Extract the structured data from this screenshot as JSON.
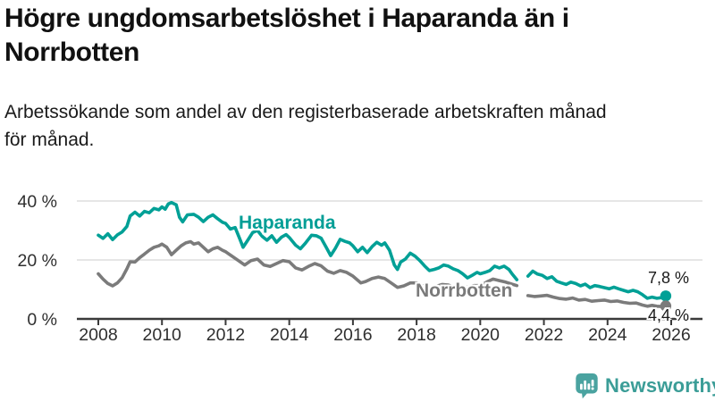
{
  "header": {
    "title_lines": [
      "Högre ungdomsarbetslöshet i Haparanda än i",
      "Norrbotten"
    ],
    "subtitle_lines": [
      "Arbetssökande som andel av den registerbaserade arbetskraften månad",
      "för månad."
    ]
  },
  "chart_data": {
    "type": "line",
    "unit": "%",
    "x_axis": {
      "ticks": [
        2008,
        2010,
        2012,
        2014,
        2016,
        2018,
        2020,
        2022,
        2024,
        2026
      ],
      "range": [
        2007.3,
        2027.0
      ]
    },
    "y_axis": {
      "ticks": [
        0,
        20,
        40
      ],
      "tick_labels": [
        "0 %",
        "20 %",
        "40 %"
      ],
      "range": [
        0,
        42
      ],
      "grid": true
    },
    "legend_position": "inline-labels",
    "series": [
      {
        "name": "Haparanda",
        "color": "#00a096",
        "end_label": "7,8 %",
        "end_value": 7.8,
        "segments": [
          [
            [
              2008.0,
              28.4
            ],
            [
              2008.15,
              27.3
            ],
            [
              2008.3,
              28.9
            ],
            [
              2008.45,
              26.9
            ],
            [
              2008.6,
              28.5
            ],
            [
              2008.75,
              29.5
            ],
            [
              2008.9,
              31.4
            ],
            [
              2009.0,
              34.9
            ],
            [
              2009.15,
              36.2
            ],
            [
              2009.3,
              34.9
            ],
            [
              2009.45,
              36.5
            ],
            [
              2009.6,
              36.0
            ],
            [
              2009.75,
              37.5
            ],
            [
              2009.9,
              37.0
            ],
            [
              2010.0,
              38.0
            ],
            [
              2010.1,
              37.2
            ],
            [
              2010.2,
              39.0
            ],
            [
              2010.3,
              39.5
            ],
            [
              2010.45,
              38.7
            ],
            [
              2010.55,
              34.5
            ],
            [
              2010.65,
              32.9
            ],
            [
              2010.8,
              35.3
            ],
            [
              2011.0,
              35.5
            ],
            [
              2011.15,
              34.5
            ],
            [
              2011.3,
              33.0
            ],
            [
              2011.45,
              34.5
            ],
            [
              2011.6,
              35.3
            ],
            [
              2011.75,
              34.0
            ],
            [
              2011.9,
              32.8
            ],
            [
              2012.0,
              32.4
            ],
            [
              2012.15,
              30.5
            ],
            [
              2012.3,
              31.0
            ],
            [
              2012.45,
              27.0
            ],
            [
              2012.55,
              24.3
            ],
            [
              2012.7,
              26.8
            ],
            [
              2012.85,
              29.3
            ],
            [
              2013.0,
              30.0
            ],
            [
              2013.15,
              28.0
            ],
            [
              2013.3,
              26.7
            ],
            [
              2013.45,
              28.2
            ],
            [
              2013.6,
              26.0
            ],
            [
              2013.75,
              27.7
            ],
            [
              2013.9,
              28.6
            ],
            [
              2014.0,
              27.6
            ],
            [
              2014.2,
              25.0
            ],
            [
              2014.35,
              23.8
            ],
            [
              2014.5,
              25.6
            ],
            [
              2014.7,
              28.4
            ],
            [
              2014.85,
              28.2
            ],
            [
              2015.0,
              27.4
            ],
            [
              2015.15,
              24.5
            ],
            [
              2015.3,
              21.5
            ],
            [
              2015.45,
              24.0
            ],
            [
              2015.6,
              27.0
            ],
            [
              2015.75,
              26.3
            ],
            [
              2015.9,
              25.8
            ],
            [
              2016.0,
              24.8
            ],
            [
              2016.15,
              22.8
            ],
            [
              2016.3,
              24.3
            ],
            [
              2016.45,
              22.5
            ],
            [
              2016.6,
              24.5
            ],
            [
              2016.75,
              26.0
            ],
            [
              2016.9,
              25.0
            ],
            [
              2017.0,
              25.8
            ],
            [
              2017.15,
              23.3
            ],
            [
              2017.3,
              18.3
            ],
            [
              2017.4,
              16.8
            ],
            [
              2017.5,
              19.3
            ],
            [
              2017.65,
              20.3
            ],
            [
              2017.8,
              22.3
            ],
            [
              2017.95,
              21.3
            ],
            [
              2018.1,
              19.8
            ],
            [
              2018.25,
              18.0
            ],
            [
              2018.4,
              16.4
            ],
            [
              2018.55,
              16.8
            ],
            [
              2018.7,
              17.3
            ],
            [
              2018.85,
              18.3
            ],
            [
              2019.0,
              17.9
            ],
            [
              2019.15,
              17.0
            ],
            [
              2019.3,
              16.4
            ],
            [
              2019.45,
              15.3
            ],
            [
              2019.6,
              13.9
            ],
            [
              2019.75,
              14.8
            ],
            [
              2019.9,
              15.8
            ],
            [
              2020.0,
              15.3
            ],
            [
              2020.15,
              15.8
            ],
            [
              2020.3,
              16.4
            ],
            [
              2020.45,
              17.9
            ],
            [
              2020.6,
              17.3
            ],
            [
              2020.75,
              17.9
            ],
            [
              2020.9,
              16.8
            ],
            [
              2021.0,
              15.3
            ],
            [
              2021.15,
              13.3
            ]
          ],
          [
            [
              2021.5,
              14.5
            ],
            [
              2021.65,
              16.2
            ],
            [
              2021.8,
              15.2
            ],
            [
              2021.95,
              14.8
            ],
            [
              2022.1,
              13.7
            ],
            [
              2022.25,
              14.3
            ],
            [
              2022.4,
              12.8
            ],
            [
              2022.55,
              12.2
            ],
            [
              2022.7,
              11.7
            ],
            [
              2022.85,
              12.5
            ],
            [
              2023.0,
              12.0
            ],
            [
              2023.15,
              11.2
            ],
            [
              2023.3,
              11.8
            ],
            [
              2023.45,
              10.6
            ],
            [
              2023.6,
              11.3
            ],
            [
              2023.75,
              11.0
            ],
            [
              2023.9,
              10.6
            ],
            [
              2024.05,
              10.2
            ],
            [
              2024.2,
              10.8
            ],
            [
              2024.35,
              10.2
            ],
            [
              2024.5,
              9.7
            ],
            [
              2024.65,
              9.2
            ],
            [
              2024.8,
              9.7
            ],
            [
              2024.95,
              9.2
            ],
            [
              2025.1,
              8.2
            ],
            [
              2025.25,
              7.0
            ],
            [
              2025.4,
              7.4
            ],
            [
              2025.55,
              7.0
            ],
            [
              2025.7,
              7.2
            ],
            [
              2025.83,
              7.8
            ]
          ]
        ]
      },
      {
        "name": "Norrbotten",
        "color": "#7b7b7b",
        "end_label": "4,4 %",
        "end_value": 4.4,
        "segments": [
          [
            [
              2008.0,
              15.3
            ],
            [
              2008.15,
              13.5
            ],
            [
              2008.3,
              12.0
            ],
            [
              2008.45,
              11.2
            ],
            [
              2008.6,
              12.2
            ],
            [
              2008.75,
              14.0
            ],
            [
              2008.9,
              17.0
            ],
            [
              2009.0,
              19.4
            ],
            [
              2009.15,
              19.3
            ],
            [
              2009.3,
              20.8
            ],
            [
              2009.45,
              22.0
            ],
            [
              2009.6,
              23.3
            ],
            [
              2009.75,
              24.3
            ],
            [
              2009.9,
              24.8
            ],
            [
              2010.0,
              25.4
            ],
            [
              2010.15,
              24.3
            ],
            [
              2010.3,
              21.8
            ],
            [
              2010.45,
              23.3
            ],
            [
              2010.6,
              24.8
            ],
            [
              2010.75,
              25.8
            ],
            [
              2010.9,
              26.2
            ],
            [
              2011.0,
              25.4
            ],
            [
              2011.15,
              25.8
            ],
            [
              2011.3,
              24.3
            ],
            [
              2011.45,
              22.8
            ],
            [
              2011.6,
              23.8
            ],
            [
              2011.75,
              24.3
            ],
            [
              2011.9,
              23.3
            ],
            [
              2012.0,
              22.8
            ],
            [
              2012.2,
              21.3
            ],
            [
              2012.4,
              19.8
            ],
            [
              2012.6,
              18.3
            ],
            [
              2012.8,
              19.8
            ],
            [
              2013.0,
              20.3
            ],
            [
              2013.2,
              18.3
            ],
            [
              2013.4,
              17.8
            ],
            [
              2013.6,
              18.8
            ],
            [
              2013.8,
              19.8
            ],
            [
              2014.0,
              19.4
            ],
            [
              2014.2,
              17.3
            ],
            [
              2014.4,
              16.6
            ],
            [
              2014.6,
              17.8
            ],
            [
              2014.8,
              18.8
            ],
            [
              2015.0,
              18.0
            ],
            [
              2015.2,
              16.2
            ],
            [
              2015.4,
              15.5
            ],
            [
              2015.6,
              16.4
            ],
            [
              2015.8,
              15.8
            ],
            [
              2016.0,
              14.5
            ],
            [
              2016.25,
              12.2
            ],
            [
              2016.4,
              12.7
            ],
            [
              2016.6,
              13.7
            ],
            [
              2016.8,
              14.2
            ],
            [
              2017.0,
              13.7
            ],
            [
              2017.2,
              12.2
            ],
            [
              2017.4,
              10.7
            ],
            [
              2017.6,
              11.2
            ],
            [
              2017.8,
              12.2
            ],
            [
              2018.0,
              12.2
            ],
            [
              2018.2,
              11.2
            ],
            [
              2018.4,
              10.5
            ],
            [
              2018.6,
              11.0
            ],
            [
              2018.8,
              11.7
            ],
            [
              2019.0,
              11.5
            ],
            [
              2019.2,
              10.6
            ],
            [
              2019.4,
              10.2
            ],
            [
              2019.6,
              10.8
            ],
            [
              2019.8,
              11.3
            ],
            [
              2020.0,
              11.3
            ],
            [
              2020.2,
              12.5
            ],
            [
              2020.4,
              13.5
            ],
            [
              2020.6,
              13.0
            ],
            [
              2020.8,
              12.5
            ],
            [
              2021.0,
              11.8
            ],
            [
              2021.15,
              11.3
            ]
          ],
          [
            [
              2021.5,
              7.9
            ],
            [
              2021.7,
              7.6
            ],
            [
              2021.9,
              7.8
            ],
            [
              2022.1,
              8.0
            ],
            [
              2022.3,
              7.4
            ],
            [
              2022.5,
              6.9
            ],
            [
              2022.7,
              6.7
            ],
            [
              2022.9,
              7.1
            ],
            [
              2023.1,
              6.4
            ],
            [
              2023.3,
              6.6
            ],
            [
              2023.5,
              6.0
            ],
            [
              2023.7,
              6.2
            ],
            [
              2023.9,
              6.4
            ],
            [
              2024.1,
              5.9
            ],
            [
              2024.3,
              6.1
            ],
            [
              2024.5,
              5.6
            ],
            [
              2024.7,
              5.3
            ],
            [
              2024.9,
              5.4
            ],
            [
              2025.1,
              4.7
            ],
            [
              2025.25,
              4.3
            ],
            [
              2025.4,
              4.6
            ],
            [
              2025.55,
              4.3
            ],
            [
              2025.7,
              4.2
            ],
            [
              2025.83,
              4.4
            ]
          ]
        ]
      }
    ]
  },
  "branding": {
    "name": "Newsworthy",
    "icon": "speech-bubble-bar-chart-icon",
    "text_color": "#3b9d97",
    "icon_color": "#4aa3a0"
  }
}
